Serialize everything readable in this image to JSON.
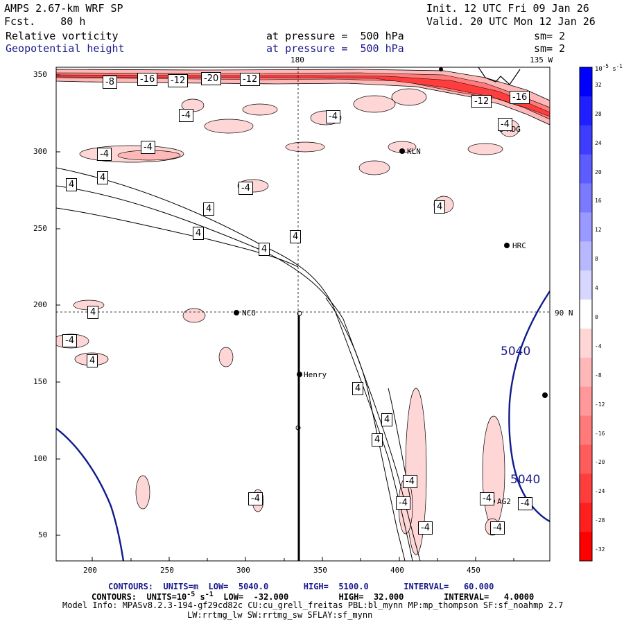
{
  "header": {
    "model_line": "AMPS 2.67-km WRF SP",
    "fcst_line": "Fcst.    80 h",
    "init_line": "Init. 12 UTC Fri 09 Jan 26",
    "valid_line": "Valid. 20 UTC Mon 12 Jan 26"
  },
  "fields": [
    {
      "name": "Relative vorticity",
      "pressure": "at pressure =  500 hPa",
      "sm": "sm= 2"
    },
    {
      "name": "Geopotential height",
      "pressure": "at pressure =  500 hPa",
      "sm": "sm= 2"
    }
  ],
  "map_labels": {
    "lon_180": "180",
    "lon_135w": "135 W",
    "lat_90n": "90 N"
  },
  "axes": {
    "x_ticks": [
      "200",
      "250",
      "300",
      "350",
      "400",
      "450"
    ],
    "y_ticks": [
      "50",
      "100",
      "150",
      "200",
      "250",
      "300",
      "350"
    ]
  },
  "stations": [
    "NCO",
    "Henry",
    "KLN",
    "HRC",
    "ADG",
    "AG2"
  ],
  "contour_labels": {
    "vorticity": [
      "-8",
      "-16",
      "-12",
      "-20",
      "-12",
      "-12",
      "-16",
      "-4",
      "-4",
      "-4",
      "-4",
      "-4",
      "4",
      "4",
      "4",
      "4",
      "4",
      "4",
      "4",
      "4",
      "4",
      "4",
      "-4",
      "-4",
      "-4",
      "4",
      "4",
      "4",
      "-4",
      "-4",
      "-4",
      "-4",
      "-4",
      "-4",
      "-4",
      "-4"
    ],
    "height": [
      "5040",
      "5040"
    ]
  },
  "colorbar": {
    "units": "10",
    "units_exp": "-5",
    "units_suffix": " s",
    "units_suffix_exp": "-1",
    "ticks": [
      "32",
      "28",
      "24",
      "20",
      "16",
      "12",
      "8",
      "4",
      "0",
      "-4",
      "-8",
      "-12",
      "-16",
      "-20",
      "-24",
      "-28",
      "-32"
    ],
    "colors": [
      "#0000ff",
      "#1f1fff",
      "#3d3dff",
      "#5c5cff",
      "#7a7aff",
      "#9999ff",
      "#b8b8ff",
      "#d6d6ff",
      "#ffffff",
      "#ffd6d6",
      "#ffb8b8",
      "#ff9999",
      "#ff7a7a",
      "#ff5c5c",
      "#ff3d3d",
      "#ff1f1f",
      "#ff0000"
    ]
  },
  "footer": {
    "contours1": "CONTOURS:  UNITS=m  LOW=  5040.0       HIGH=  5100.0       INTERVAL=   60.000",
    "contours2_a": "CONTOURS:  UNITS=10",
    "contours2_exp1": "-5",
    "contours2_b": " s",
    "contours2_exp2": "-1",
    "contours2_c": "  LOW=  -32.000          HIGH=  32.000        INTERVAL=   4.0000",
    "model_info": "Model Info: MPASv8.2.3-194-gf29cd82c CU:cu_grell_freitas PBL:bl_mynn MP:mp_thompson SF:sf_noahmp 2.7",
    "model_info2": "LW:rrtmg_lw SW:rrtmg_sw SFLAY:sf_mynn"
  }
}
